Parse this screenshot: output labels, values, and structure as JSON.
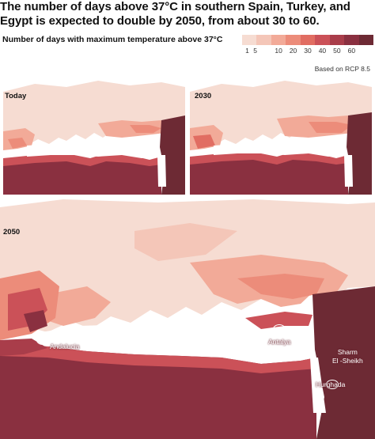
{
  "title": "The number of days above 37°C in southern Spain, Turkey, and Egypt is expected to double by 2050, from about 30 to 60.",
  "subtitle": "Number of days with maximum temperature above 37°C",
  "note": "Based on RCP 8.5",
  "legend": {
    "ticks": [
      "1",
      "5",
      "10",
      "20",
      "30",
      "40",
      "50",
      "60"
    ],
    "colors": [
      "#f6dcd2",
      "#f4c6b8",
      "#f2aa98",
      "#ec8c7a",
      "#e16d62",
      "#cb5158",
      "#a93d4a",
      "#8a3040",
      "#6d2a34"
    ]
  },
  "panels": {
    "today": {
      "label": "Today"
    },
    "y2030": {
      "label": "2030"
    },
    "y2050": {
      "label": "2050"
    }
  },
  "cities": {
    "andalucia": "Andalucia",
    "antalya": "Antalya",
    "sharm": "Sharm El -Sheikh",
    "sharm_line1": "Sharm",
    "sharm_line2": "El -Sheikh",
    "hurghada": "Hurghada"
  }
}
